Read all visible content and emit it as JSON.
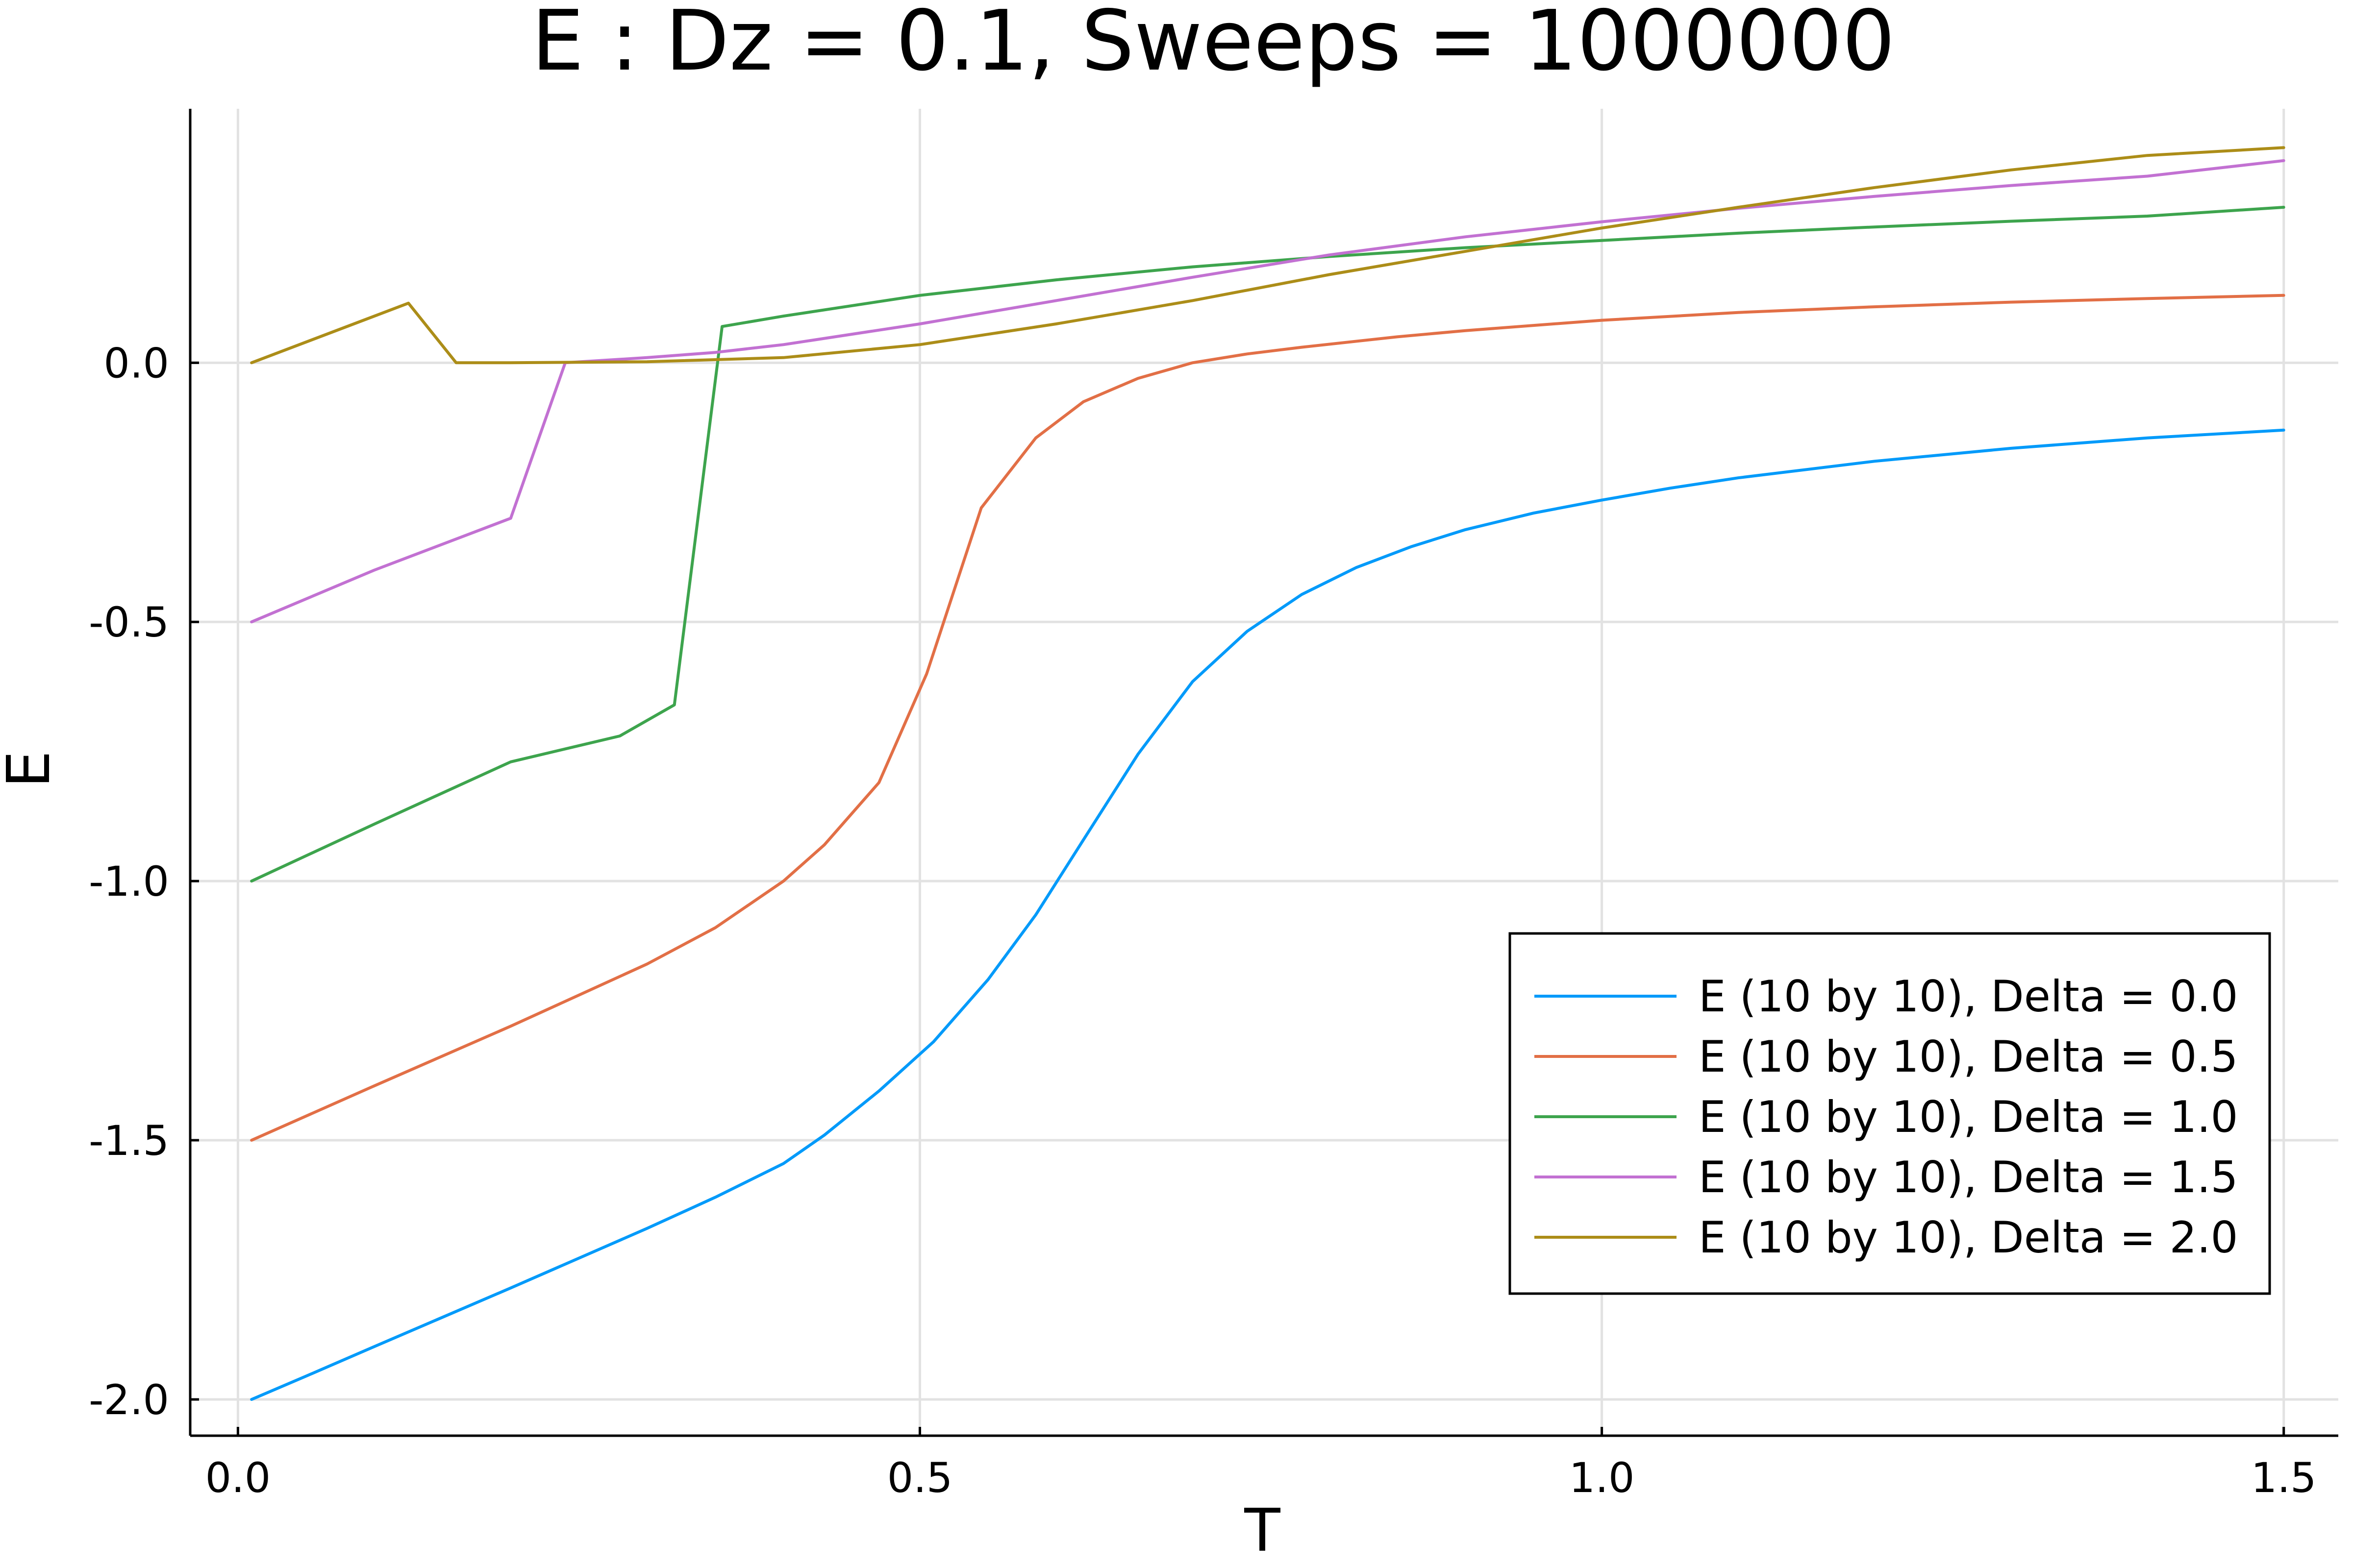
{
  "chart_data": {
    "type": "line",
    "title": "E : Dz = 0.1, Sweeps = 1000000",
    "xlabel": "T",
    "ylabel": "E",
    "xlim": [
      -0.035,
      1.54
    ],
    "ylim": [
      -2.07,
      0.49
    ],
    "xticks": [
      0.0,
      0.5,
      1.0,
      1.5
    ],
    "xtick_labels": [
      "0.0",
      "0.5",
      "1.0",
      "1.5"
    ],
    "yticks": [
      0.0,
      -0.5,
      -1.0,
      -1.5,
      -2.0
    ],
    "ytick_labels": [
      "0.0",
      "-0.5",
      "-1.0",
      "-1.5",
      "-2.0"
    ],
    "grid": true,
    "legend_position": "bottom-right",
    "series": [
      {
        "name": "E (10 by 10), Delta = 0.0",
        "color": "#009AFA",
        "x": [
          0.01,
          0.05,
          0.1,
          0.2,
          0.3,
          0.35,
          0.4,
          0.43,
          0.47,
          0.51,
          0.55,
          0.585,
          0.62,
          0.66,
          0.7,
          0.74,
          0.78,
          0.82,
          0.86,
          0.9,
          0.95,
          1.0,
          1.05,
          1.1,
          1.2,
          1.3,
          1.4,
          1.5
        ],
        "y": [
          -2.0,
          -1.955,
          -1.898,
          -1.785,
          -1.67,
          -1.61,
          -1.545,
          -1.49,
          -1.405,
          -1.31,
          -1.19,
          -1.065,
          -0.92,
          -0.755,
          -0.615,
          -0.518,
          -0.447,
          -0.395,
          -0.355,
          -0.322,
          -0.29,
          -0.265,
          -0.242,
          -0.222,
          -0.19,
          -0.165,
          -0.145,
          -0.13
        ]
      },
      {
        "name": "E (10 by 10), Delta = 0.5",
        "color": "#E26F46",
        "x": [
          0.01,
          0.1,
          0.2,
          0.3,
          0.35,
          0.4,
          0.43,
          0.47,
          0.505,
          0.545,
          0.585,
          0.62,
          0.66,
          0.7,
          0.74,
          0.78,
          0.85,
          0.9,
          1.0,
          1.1,
          1.2,
          1.3,
          1.4,
          1.5
        ],
        "y": [
          -1.5,
          -1.395,
          -1.28,
          -1.16,
          -1.09,
          -1.0,
          -0.93,
          -0.81,
          -0.6,
          -0.28,
          -0.145,
          -0.075,
          -0.03,
          0.0,
          0.017,
          0.03,
          0.05,
          0.062,
          0.082,
          0.097,
          0.108,
          0.117,
          0.124,
          0.13
        ]
      },
      {
        "name": "E (10 by 10), Delta = 1.0",
        "color": "#3DA44D",
        "x": [
          0.01,
          0.1,
          0.2,
          0.28,
          0.32,
          0.355,
          0.4,
          0.5,
          0.6,
          0.7,
          0.8,
          0.9,
          1.0,
          1.1,
          1.2,
          1.3,
          1.4,
          1.5
        ],
        "y": [
          -1.0,
          -0.89,
          -0.77,
          -0.72,
          -0.66,
          0.07,
          0.09,
          0.13,
          0.16,
          0.185,
          0.205,
          0.222,
          0.236,
          0.25,
          0.262,
          0.273,
          0.283,
          0.3
        ]
      },
      {
        "name": "E (10 by 10), Delta = 1.5",
        "color": "#C271D2",
        "x": [
          0.01,
          0.1,
          0.2,
          0.24,
          0.3,
          0.35,
          0.4,
          0.5,
          0.6,
          0.7,
          0.8,
          0.9,
          1.0,
          1.1,
          1.2,
          1.3,
          1.4,
          1.5
        ],
        "y": [
          -0.5,
          -0.4,
          -0.3,
          0.0,
          0.01,
          0.02,
          0.035,
          0.075,
          0.12,
          0.165,
          0.208,
          0.243,
          0.272,
          0.298,
          0.321,
          0.342,
          0.36,
          0.39
        ]
      },
      {
        "name": "E (10 by 10), Delta = 2.0",
        "color": "#AC8D18",
        "x": [
          0.01,
          0.125,
          0.16,
          0.2,
          0.3,
          0.4,
          0.5,
          0.6,
          0.7,
          0.8,
          0.9,
          1.0,
          1.1,
          1.2,
          1.3,
          1.4,
          1.5
        ],
        "y": [
          0.0,
          0.115,
          0.0,
          0.0,
          0.002,
          0.01,
          0.035,
          0.075,
          0.12,
          0.17,
          0.215,
          0.26,
          0.3,
          0.338,
          0.372,
          0.4,
          0.415
        ]
      }
    ]
  }
}
